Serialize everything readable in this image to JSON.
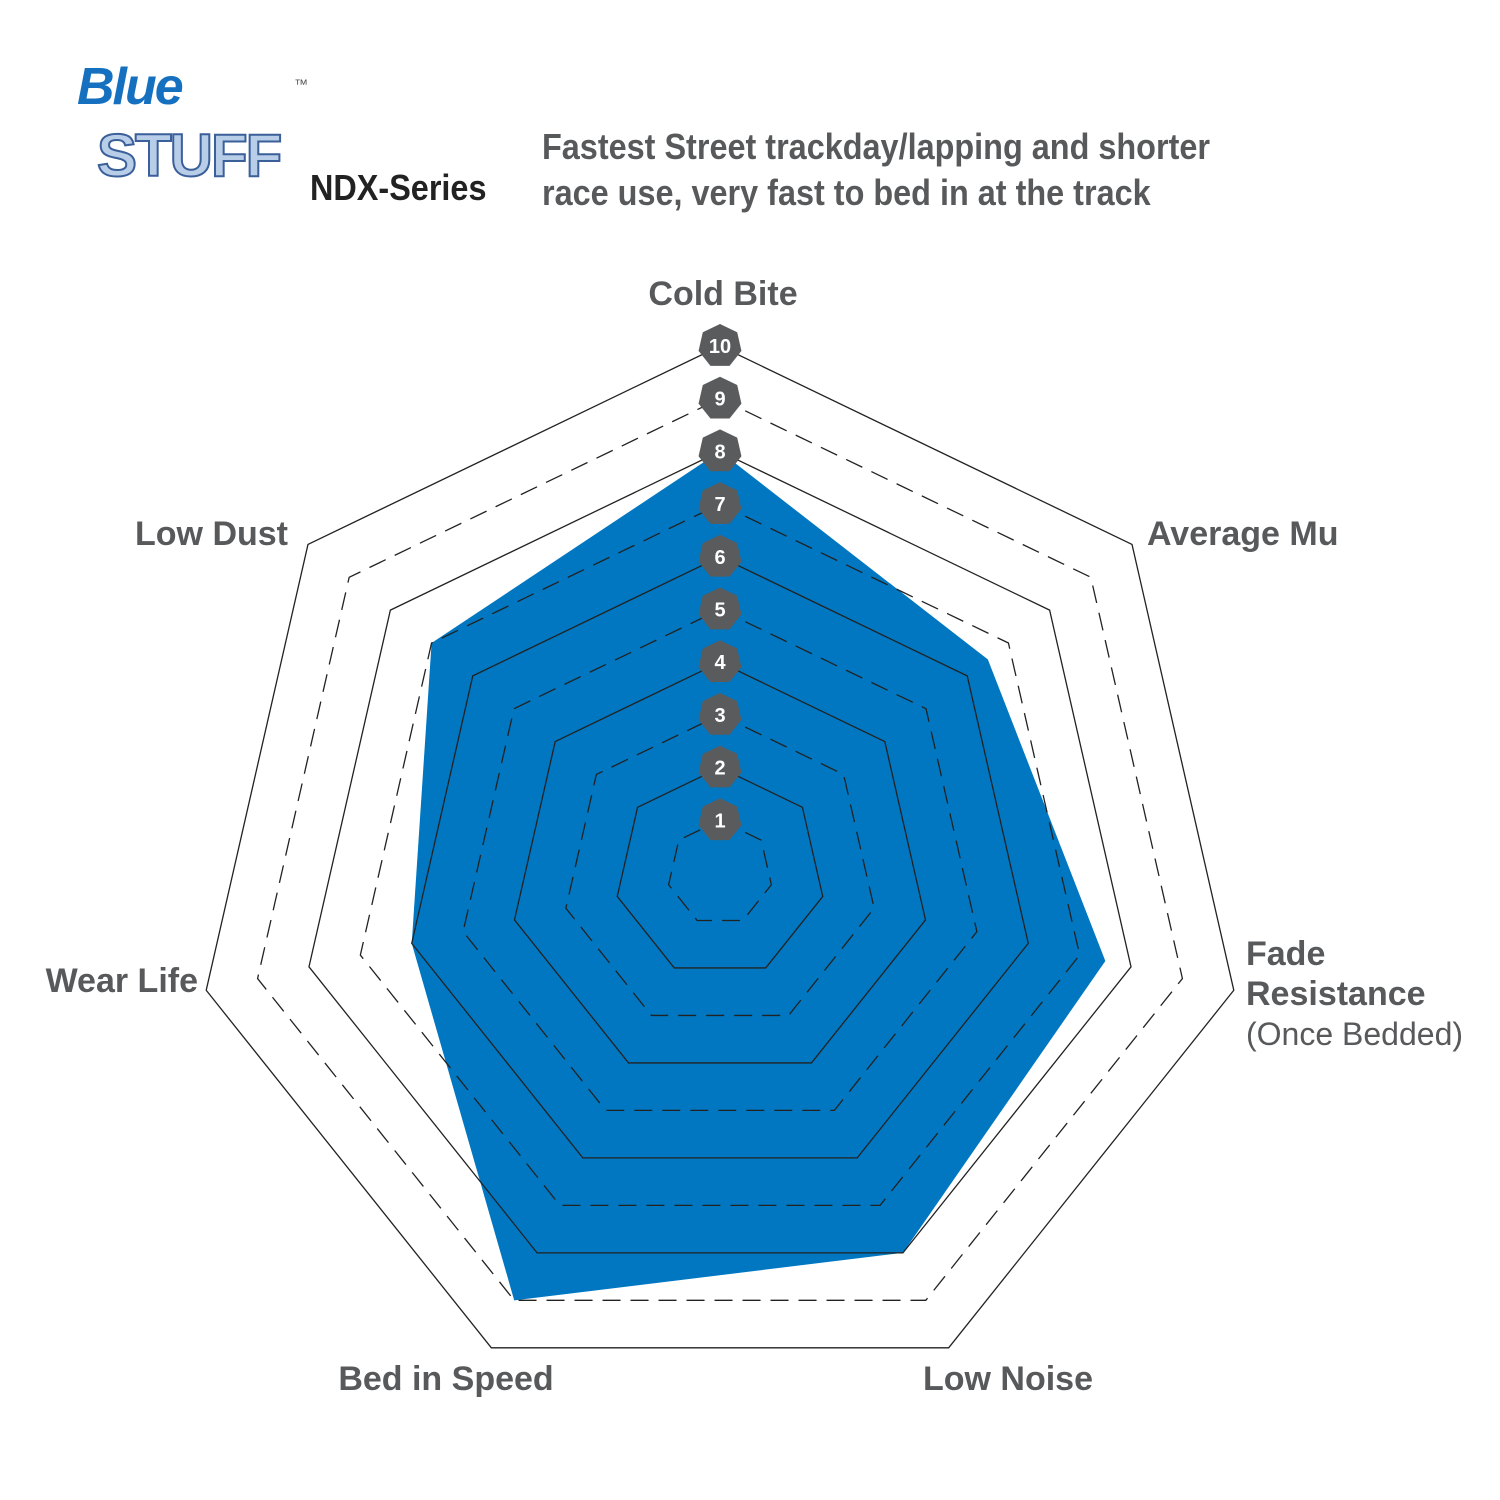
{
  "logo": {
    "line1": "Blue",
    "line2": "STUFF",
    "tm": "™",
    "series": "NDX-Series"
  },
  "subtitle": [
    "Fastest Street trackday/lapping and shorter",
    "race use, very fast to bed in at the track"
  ],
  "chart_data": {
    "type": "radar",
    "title": "",
    "categories": [
      {
        "label": "Cold Bite",
        "sub": ""
      },
      {
        "label": "Average Mu",
        "sub": ""
      },
      {
        "label": "Fade Resistance",
        "sub": "(Once Bedded)"
      },
      {
        "label": "Low Noise",
        "sub": ""
      },
      {
        "label": "Bed in Speed",
        "sub": ""
      },
      {
        "label": "Wear Life",
        "sub": ""
      },
      {
        "label": "Low Dust",
        "sub": ""
      }
    ],
    "values": [
      8,
      6.5,
      7.5,
      8,
      9,
      6,
      7
    ],
    "rlim": [
      0,
      10
    ],
    "ticks": [
      "1",
      "2",
      "3",
      "4",
      "5",
      "6",
      "7",
      "8",
      "9",
      "10"
    ],
    "grid": true,
    "colors": {
      "fill": "#0077c0",
      "grid": "#222222",
      "tick_badge": "#5a5b5d",
      "label": "#58595b"
    }
  }
}
